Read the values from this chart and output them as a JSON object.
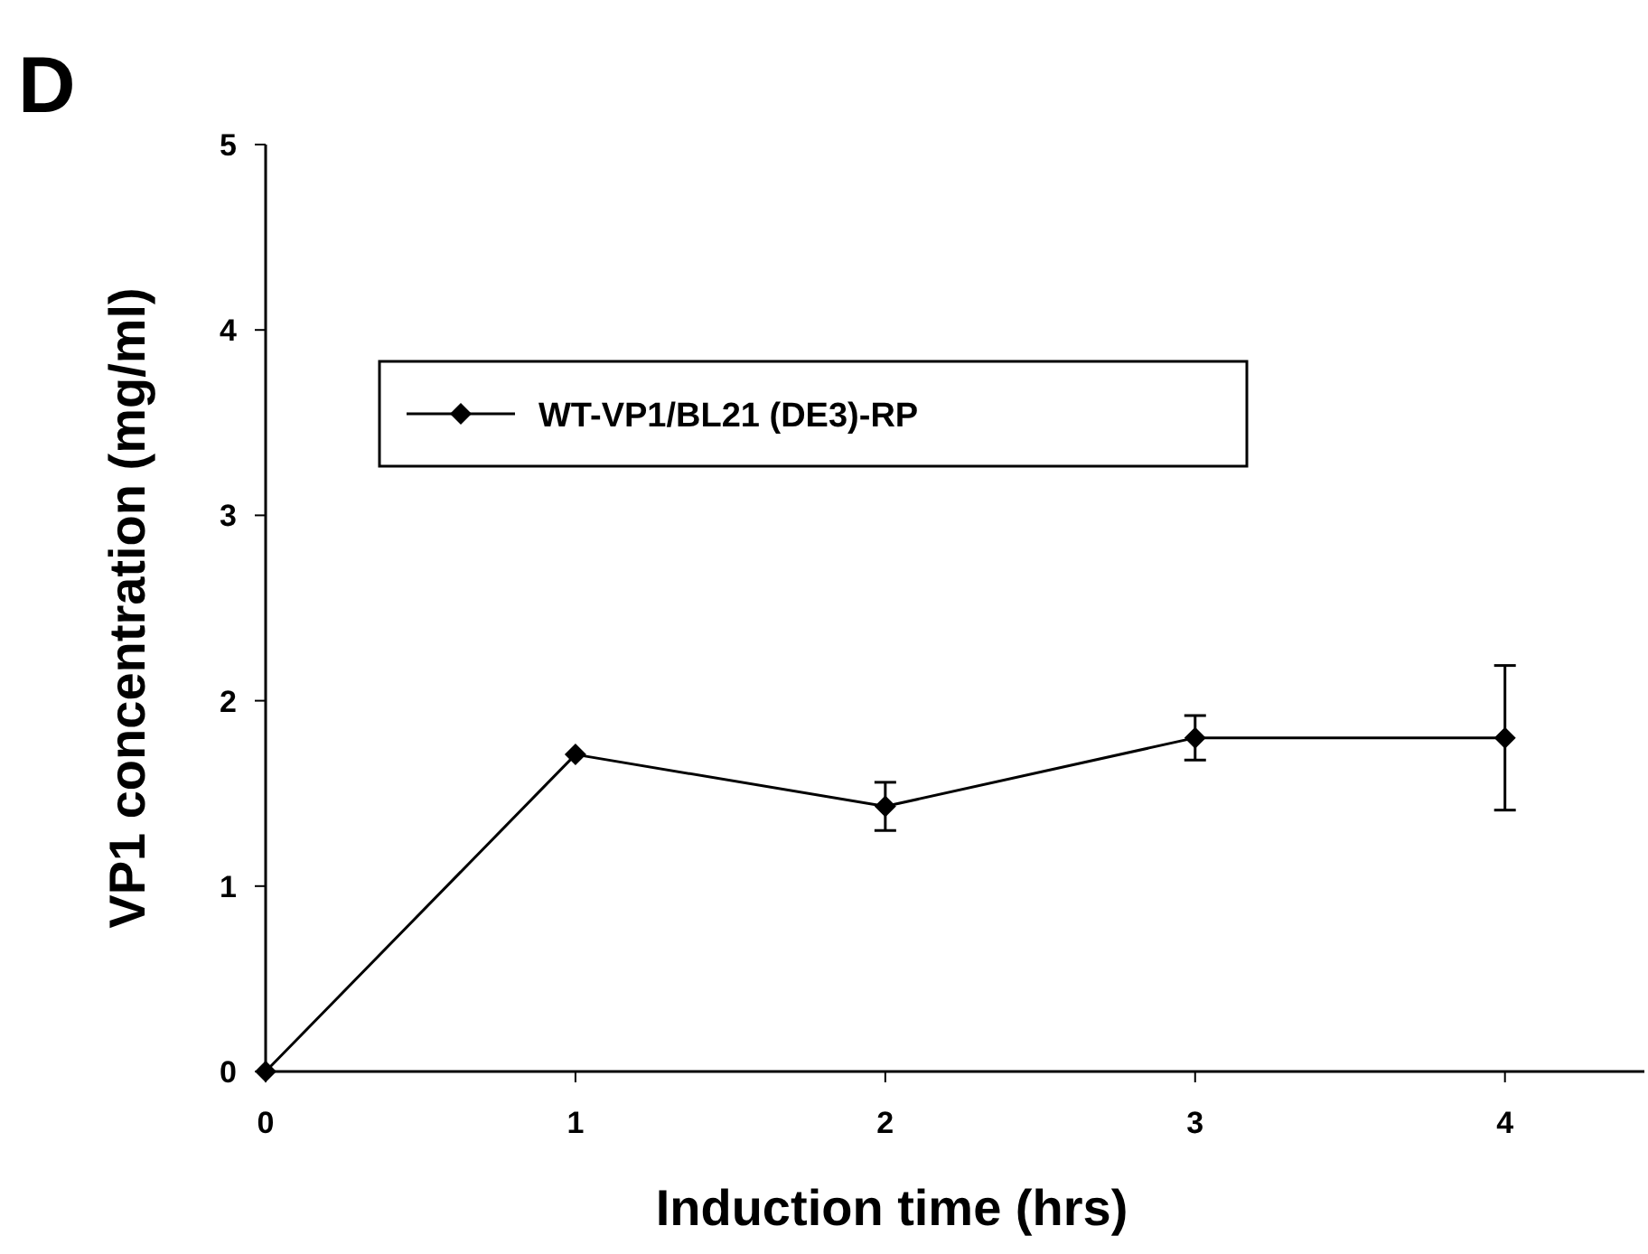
{
  "chart_data": {
    "type": "line",
    "xlabel": "Induction time (hrs)",
    "ylabel": "VP1 concentration (mg/ml)",
    "annotations": [
      "D"
    ],
    "x": [
      0,
      1,
      2,
      3,
      4
    ],
    "series": [
      {
        "name": "WT-VP1/BL21 (DE3)-RP",
        "color": "#000000",
        "values": [
          0,
          1.71,
          1.43,
          1.8,
          1.8
        ],
        "errors": [
          null,
          null,
          0.13,
          0.12,
          0.39
        ]
      }
    ],
    "xlim": [
      0,
      4.45
    ],
    "xticks": [
      0,
      1,
      2,
      3,
      4
    ],
    "ylim": [
      0,
      5
    ],
    "yticks": [
      0,
      1,
      2,
      3,
      4,
      5
    ],
    "grid": false,
    "legend": "top left",
    "marker": "diamond",
    "line_style": "solid"
  }
}
